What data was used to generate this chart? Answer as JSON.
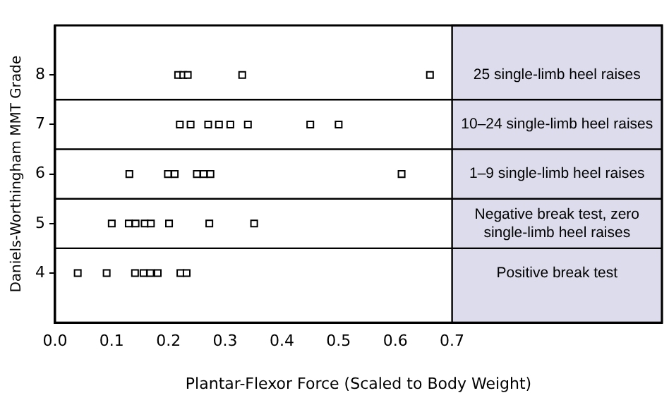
{
  "chart_data": {
    "type": "scatter",
    "xlabel": "Plantar-Flexor Force (Scaled to Body Weight)",
    "ylabel": "Daniels-Worthingham MMT Grade",
    "series": [
      {
        "color": "#000000",
        "x": [
          0.217,
          0.226,
          0.234,
          0.33,
          0.661,
          0.22,
          0.239,
          0.27,
          0.289,
          0.309,
          0.34,
          0.45,
          0.5,
          0.131,
          0.199,
          0.211,
          0.25,
          0.262,
          0.274,
          0.611,
          0.1,
          0.13,
          0.142,
          0.158,
          0.169,
          0.201,
          0.272,
          0.351,
          0.04,
          0.091,
          0.141,
          0.156,
          0.168,
          0.181,
          0.221,
          0.232
        ],
        "values": [
          8,
          8,
          8,
          8,
          8,
          7,
          7,
          7,
          7,
          7,
          7,
          7,
          7,
          6,
          6,
          6,
          6,
          6,
          6,
          6,
          5,
          5,
          5,
          5,
          5,
          5,
          5,
          5,
          4,
          4,
          4,
          4,
          4,
          4,
          4,
          4
        ]
      }
    ],
    "marker": "square",
    "grid": false,
    "legend": false,
    "xlim": [
      0,
      1.07
    ],
    "xticks": [
      {
        "value": 0,
        "label": "0.0"
      },
      {
        "value": 0.1,
        "label": "0.1"
      },
      {
        "value": 0.2,
        "label": "0.2"
      },
      {
        "value": 0.3,
        "label": "0.3"
      },
      {
        "value": 0.4,
        "label": "0.4"
      },
      {
        "value": 0.5,
        "label": "0.5"
      },
      {
        "value": 0.6,
        "label": "0.6"
      },
      {
        "value": 0.7,
        "label": "0.7"
      }
    ],
    "ylim": [
      3,
      9
    ],
    "yticks": [
      4,
      5,
      6,
      7,
      8
    ],
    "ref_lines": [
      {
        "axis": "y",
        "value": 7.5,
        "color": "#000000"
      },
      {
        "axis": "y",
        "value": 6.5,
        "color": "#000000"
      },
      {
        "axis": "y",
        "value": 5.5,
        "color": "#000000"
      },
      {
        "axis": "y",
        "value": 4.5,
        "color": "#000000"
      }
    ],
    "bands": [
      {
        "axis": "x",
        "from": 0.7,
        "to": 1.07,
        "color": "#dcdcec"
      }
    ],
    "annotations": [
      "25 single-limb heel raises",
      "10–24 single-limb heel raises",
      "1–9 single-limb heel raises",
      "Negative break test, zero single-limb heel raises",
      "Positive break test"
    ]
  }
}
